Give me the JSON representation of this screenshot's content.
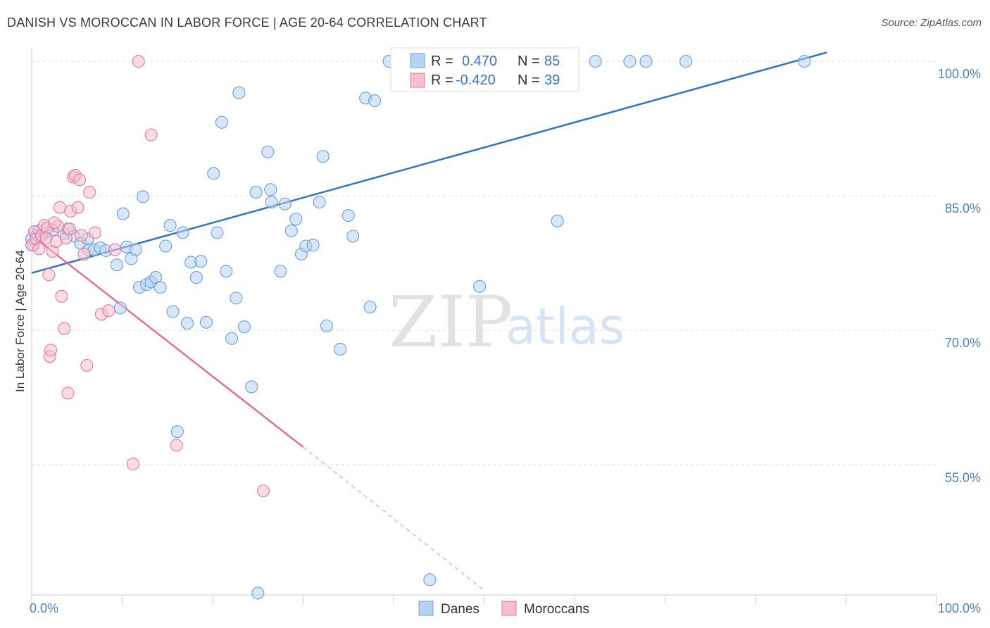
{
  "title": "DANISH VS MOROCCAN IN LABOR FORCE | AGE 20-64 CORRELATION CHART",
  "source": "Source: ZipAtlas.com",
  "watermark": {
    "zip": "ZIP",
    "atlas": "atlas"
  },
  "legend_box": {
    "rows": [
      {
        "r_label": "R =",
        "r_value": "0.470",
        "n_label": "N =",
        "n_value": "85",
        "color": "#a9c8ef"
      },
      {
        "r_label": "R =",
        "r_value": "-0.420",
        "n_label": "N =",
        "n_value": "39",
        "color": "#f7b8ca"
      }
    ]
  },
  "chart_data": {
    "type": "scatter",
    "title": "DANISH VS MOROCCAN IN LABOR FORCE | AGE 20-64 CORRELATION CHART",
    "xlabel": "",
    "ylabel": "In Labor Force | Age 20-64",
    "xlim": [
      0,
      100
    ],
    "ylim": [
      40.5,
      101.5
    ],
    "x_tick_labels": [
      "0.0%",
      "100.0%"
    ],
    "y_ticks": [
      55,
      70,
      85,
      100
    ],
    "y_tick_labels": [
      "55.0%",
      "70.0%",
      "85.0%",
      "100.0%"
    ],
    "grid": true,
    "legend": "top-center",
    "series": [
      {
        "name": "Danes",
        "color": "#6a9fde",
        "fill": "#b7d1f2",
        "trend": {
          "x": [
            0,
            87.9
          ],
          "y": [
            76.4,
            101.0
          ]
        },
        "points": [
          [
            0.0,
            80.2
          ],
          [
            0.2,
            79.5
          ],
          [
            0.3,
            81.0
          ],
          [
            0.5,
            80.5
          ],
          [
            0.8,
            81.1
          ],
          [
            1.1,
            80.6
          ],
          [
            1.5,
            80.9
          ],
          [
            2.3,
            81.2
          ],
          [
            3.6,
            80.8
          ],
          [
            4.0,
            81.3
          ],
          [
            4.7,
            80.5
          ],
          [
            5.4,
            79.7
          ],
          [
            6.2,
            80.2
          ],
          [
            6.3,
            79.0
          ],
          [
            6.9,
            79.0
          ],
          [
            7.6,
            79.2
          ],
          [
            8.2,
            78.9
          ],
          [
            9.4,
            77.3
          ],
          [
            9.8,
            72.5
          ],
          [
            10.1,
            83.0
          ],
          [
            10.5,
            79.3
          ],
          [
            11.0,
            78.0
          ],
          [
            11.5,
            79.0
          ],
          [
            11.9,
            74.8
          ],
          [
            12.3,
            84.9
          ],
          [
            12.7,
            75.1
          ],
          [
            13.2,
            75.4
          ],
          [
            13.7,
            75.9
          ],
          [
            14.2,
            74.8
          ],
          [
            14.8,
            79.4
          ],
          [
            15.3,
            81.7
          ],
          [
            15.6,
            72.1
          ],
          [
            16.1,
            58.7
          ],
          [
            16.7,
            80.9
          ],
          [
            17.2,
            70.8
          ],
          [
            17.6,
            77.6
          ],
          [
            18.2,
            75.9
          ],
          [
            18.7,
            77.7
          ],
          [
            19.3,
            70.9
          ],
          [
            20.1,
            87.5
          ],
          [
            20.5,
            80.9
          ],
          [
            21.0,
            93.2
          ],
          [
            21.5,
            76.6
          ],
          [
            22.1,
            69.1
          ],
          [
            22.6,
            73.6
          ],
          [
            22.9,
            96.5
          ],
          [
            23.5,
            70.4
          ],
          [
            24.3,
            63.7
          ],
          [
            24.8,
            85.4
          ],
          [
            25.0,
            40.7
          ],
          [
            26.1,
            89.9
          ],
          [
            26.4,
            85.7
          ],
          [
            26.5,
            84.3
          ],
          [
            27.5,
            76.6
          ],
          [
            28.0,
            84.1
          ],
          [
            28.7,
            81.1
          ],
          [
            29.2,
            82.4
          ],
          [
            29.8,
            78.5
          ],
          [
            30.3,
            79.4
          ],
          [
            31.1,
            79.5
          ],
          [
            31.8,
            84.3
          ],
          [
            32.2,
            89.4
          ],
          [
            32.6,
            70.5
          ],
          [
            34.1,
            67.9
          ],
          [
            35.0,
            82.8
          ],
          [
            35.5,
            80.5
          ],
          [
            36.9,
            95.9
          ],
          [
            37.4,
            72.6
          ],
          [
            37.9,
            95.6
          ],
          [
            39.5,
            100.0
          ],
          [
            40.6,
            100.0
          ],
          [
            44.0,
            42.2
          ],
          [
            44.8,
            100.0
          ],
          [
            49.5,
            74.9
          ],
          [
            50.3,
            100.0
          ],
          [
            51.9,
            100.0
          ],
          [
            52.4,
            100.0
          ],
          [
            54.8,
            100.0
          ],
          [
            57.8,
            100.0
          ],
          [
            58.1,
            82.2
          ],
          [
            62.3,
            100.0
          ],
          [
            66.1,
            100.0
          ],
          [
            67.9,
            100.0
          ],
          [
            72.3,
            100.0
          ],
          [
            85.4,
            100.0
          ]
        ]
      },
      {
        "name": "Moroccans",
        "color": "#e8789b",
        "fill": "#f7c0d0",
        "trend": {
          "x": [
            0,
            30.0
          ],
          "y": [
            80.6,
            57.0
          ]
        },
        "trend_extension": {
          "x": [
            30.0,
            50.0
          ],
          "y": [
            57.0,
            41.0
          ]
        },
        "points": [
          [
            0.0,
            79.5
          ],
          [
            0.3,
            81.0
          ],
          [
            0.5,
            80.2
          ],
          [
            0.8,
            79.1
          ],
          [
            1.1,
            80.6
          ],
          [
            1.4,
            81.7
          ],
          [
            1.7,
            81.4
          ],
          [
            1.9,
            76.2
          ],
          [
            2.0,
            67.1
          ],
          [
            2.1,
            67.8
          ],
          [
            2.3,
            78.8
          ],
          [
            2.7,
            79.9
          ],
          [
            2.9,
            81.6
          ],
          [
            3.1,
            83.7
          ],
          [
            3.3,
            73.8
          ],
          [
            3.6,
            70.2
          ],
          [
            3.8,
            80.3
          ],
          [
            4.0,
            63.0
          ],
          [
            4.3,
            83.3
          ],
          [
            4.6,
            87.1
          ],
          [
            4.8,
            87.3
          ],
          [
            5.1,
            83.7
          ],
          [
            5.3,
            86.8
          ],
          [
            5.5,
            80.6
          ],
          [
            5.8,
            78.5
          ],
          [
            6.1,
            66.1
          ],
          [
            6.4,
            85.4
          ],
          [
            7.0,
            80.9
          ],
          [
            7.7,
            71.8
          ],
          [
            8.5,
            72.2
          ],
          [
            9.2,
            79.0
          ],
          [
            11.2,
            55.1
          ],
          [
            11.8,
            100.0
          ],
          [
            13.2,
            91.8
          ],
          [
            16.0,
            57.2
          ],
          [
            25.6,
            52.1
          ],
          [
            1.6,
            80.3
          ],
          [
            2.5,
            82.0
          ],
          [
            4.2,
            81.3
          ]
        ]
      }
    ]
  },
  "bottom_legend": [
    {
      "label": "Danes",
      "color": "#b7d1f2",
      "stroke": "#6a9fde"
    },
    {
      "label": "Moroccans",
      "color": "#f7c0d0",
      "stroke": "#e8789b"
    }
  ]
}
